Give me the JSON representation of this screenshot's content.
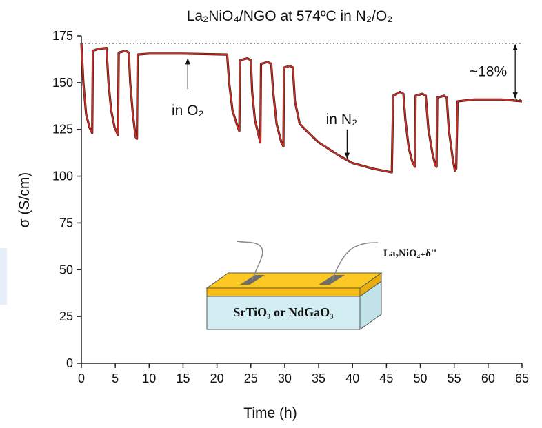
{
  "chart_data": {
    "type": "line",
    "title": "La₂NiO₄/NGO at 574ºC in N₂/O₂",
    "x_label": "Time (h)",
    "y_label": "σ (S/cm)",
    "xlim": [
      0,
      65
    ],
    "xticks": [
      0,
      5,
      10,
      15,
      20,
      25,
      30,
      35,
      40,
      45,
      50,
      55,
      60,
      65
    ],
    "ylim": [
      0,
      175
    ],
    "yticks": [
      0,
      25,
      50,
      75,
      100,
      125,
      150,
      175
    ],
    "series": [
      {
        "color": "#d42a20",
        "x": [
          0,
          0.3,
          0.7,
          1.2,
          1.6,
          1.7,
          2.5,
          3.7,
          4.0,
          4.4,
          4.9,
          5.4,
          5.5,
          6.5,
          7.0,
          7.2,
          7.6,
          8.0,
          8.2,
          8.3,
          10,
          15,
          21.5,
          21.8,
          22.3,
          23,
          23.3,
          23.4,
          24.5,
          25.0,
          25.2,
          25.6,
          26.2,
          26.4,
          26.5,
          27.5,
          28.0,
          28.3,
          28.8,
          29.5,
          29.8,
          29.9,
          30.8,
          31.2,
          31.5,
          32.2,
          33,
          35,
          38,
          40,
          43,
          45.8,
          46,
          47,
          47.5,
          47.8,
          48.3,
          48.8,
          49.2,
          49.3,
          50.3,
          50.8,
          51.2,
          51.8,
          52.2,
          52.4,
          52.5,
          53.5,
          53.9,
          54.2,
          54.8,
          55.1,
          55.3,
          55.5,
          58,
          62,
          65
        ],
        "values": [
          171,
          150,
          133,
          126,
          123,
          167,
          168,
          168.5,
          150,
          135,
          126,
          122,
          166,
          167,
          166,
          150,
          133,
          121,
          120,
          165,
          165.5,
          165.5,
          165,
          150,
          135,
          127,
          124,
          162,
          163,
          162,
          145,
          130,
          121,
          118,
          160,
          161,
          160,
          145,
          128,
          118,
          116,
          158,
          159,
          158,
          140,
          128,
          125,
          118,
          111,
          107,
          104,
          102,
          143,
          145,
          144,
          130,
          115,
          108,
          105,
          143,
          144,
          143,
          125,
          112,
          106,
          105,
          142,
          143,
          142,
          125,
          109,
          103,
          104,
          140,
          141,
          141,
          140
        ]
      }
    ],
    "hlines": [
      {
        "y": 171,
        "x": [
          0,
          65
        ]
      },
      {
        "y": 141,
        "x": [
          59,
          65
        ]
      }
    ],
    "annotations": [
      {
        "text": "in O₂",
        "x": 16,
        "y": 165
      },
      {
        "text": "in N₂",
        "x": 39,
        "y": 108
      },
      {
        "text": "~18%",
        "x": 64,
        "y": [
          171,
          141
        ]
      }
    ]
  },
  "inset": {
    "film_label": "La₂NiO₄₊δ''",
    "substrate_label": "SrTiO₃ or NdGaO₃"
  }
}
